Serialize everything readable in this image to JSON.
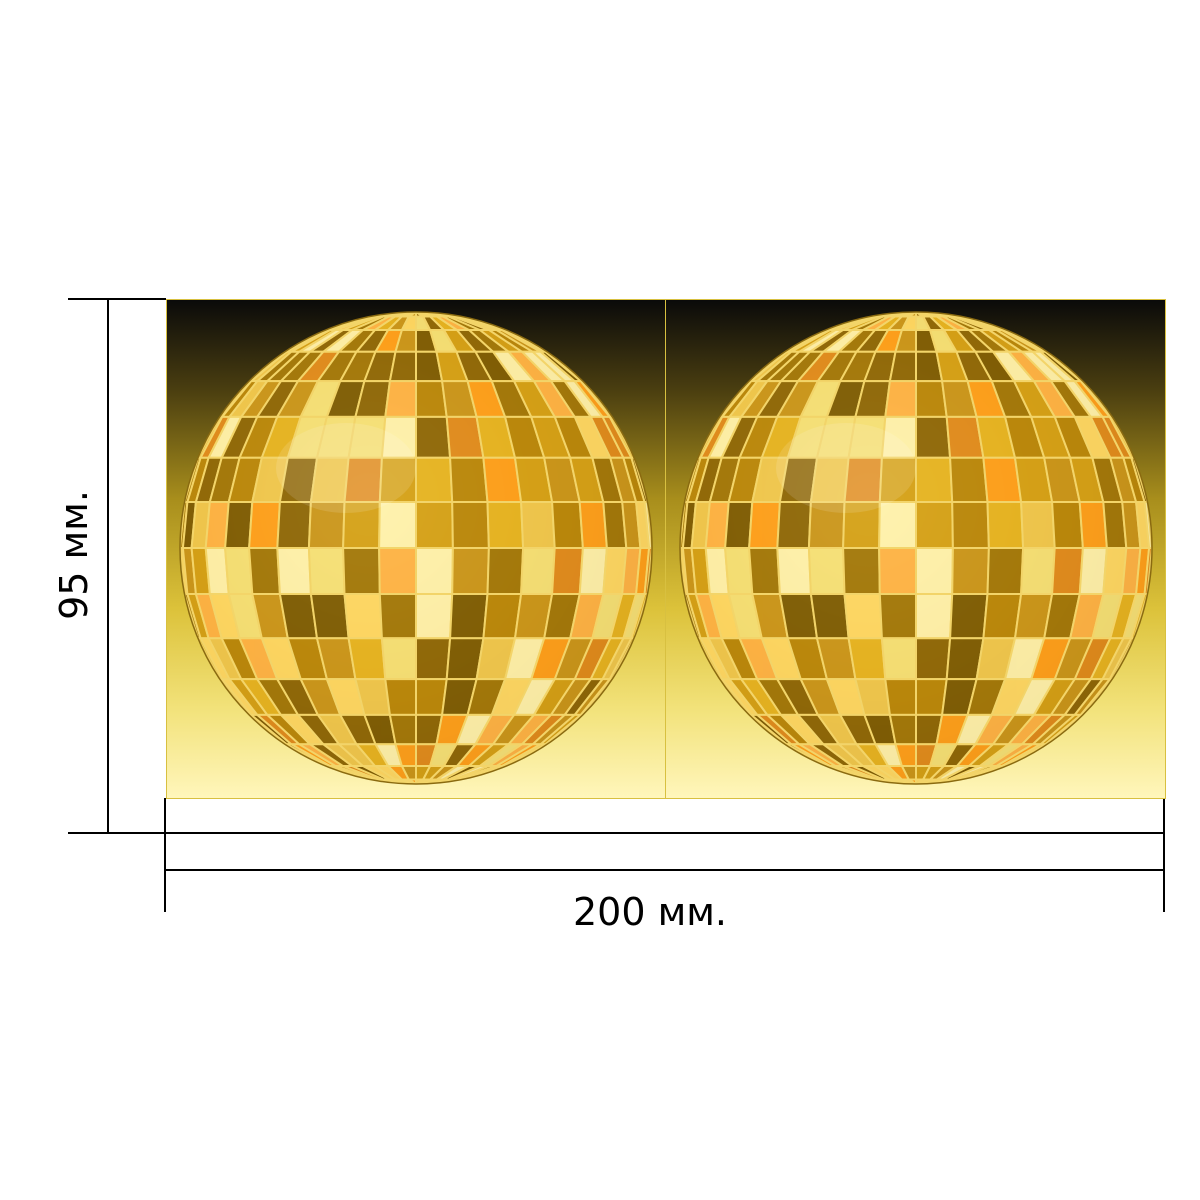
{
  "dimensions": {
    "height_label": "95 мм.",
    "width_label": "200 мм."
  },
  "product": {
    "panels": [
      {
        "name": "left-panel",
        "subject": "disco-ball-icon"
      },
      {
        "name": "right-panel",
        "subject": "disco-ball-icon"
      }
    ],
    "colors": {
      "background_top": "#0a0a0a",
      "background_bottom": "#fff6bb",
      "ball_gold": "#d4a017",
      "ball_grout": "#e8c84a"
    }
  }
}
